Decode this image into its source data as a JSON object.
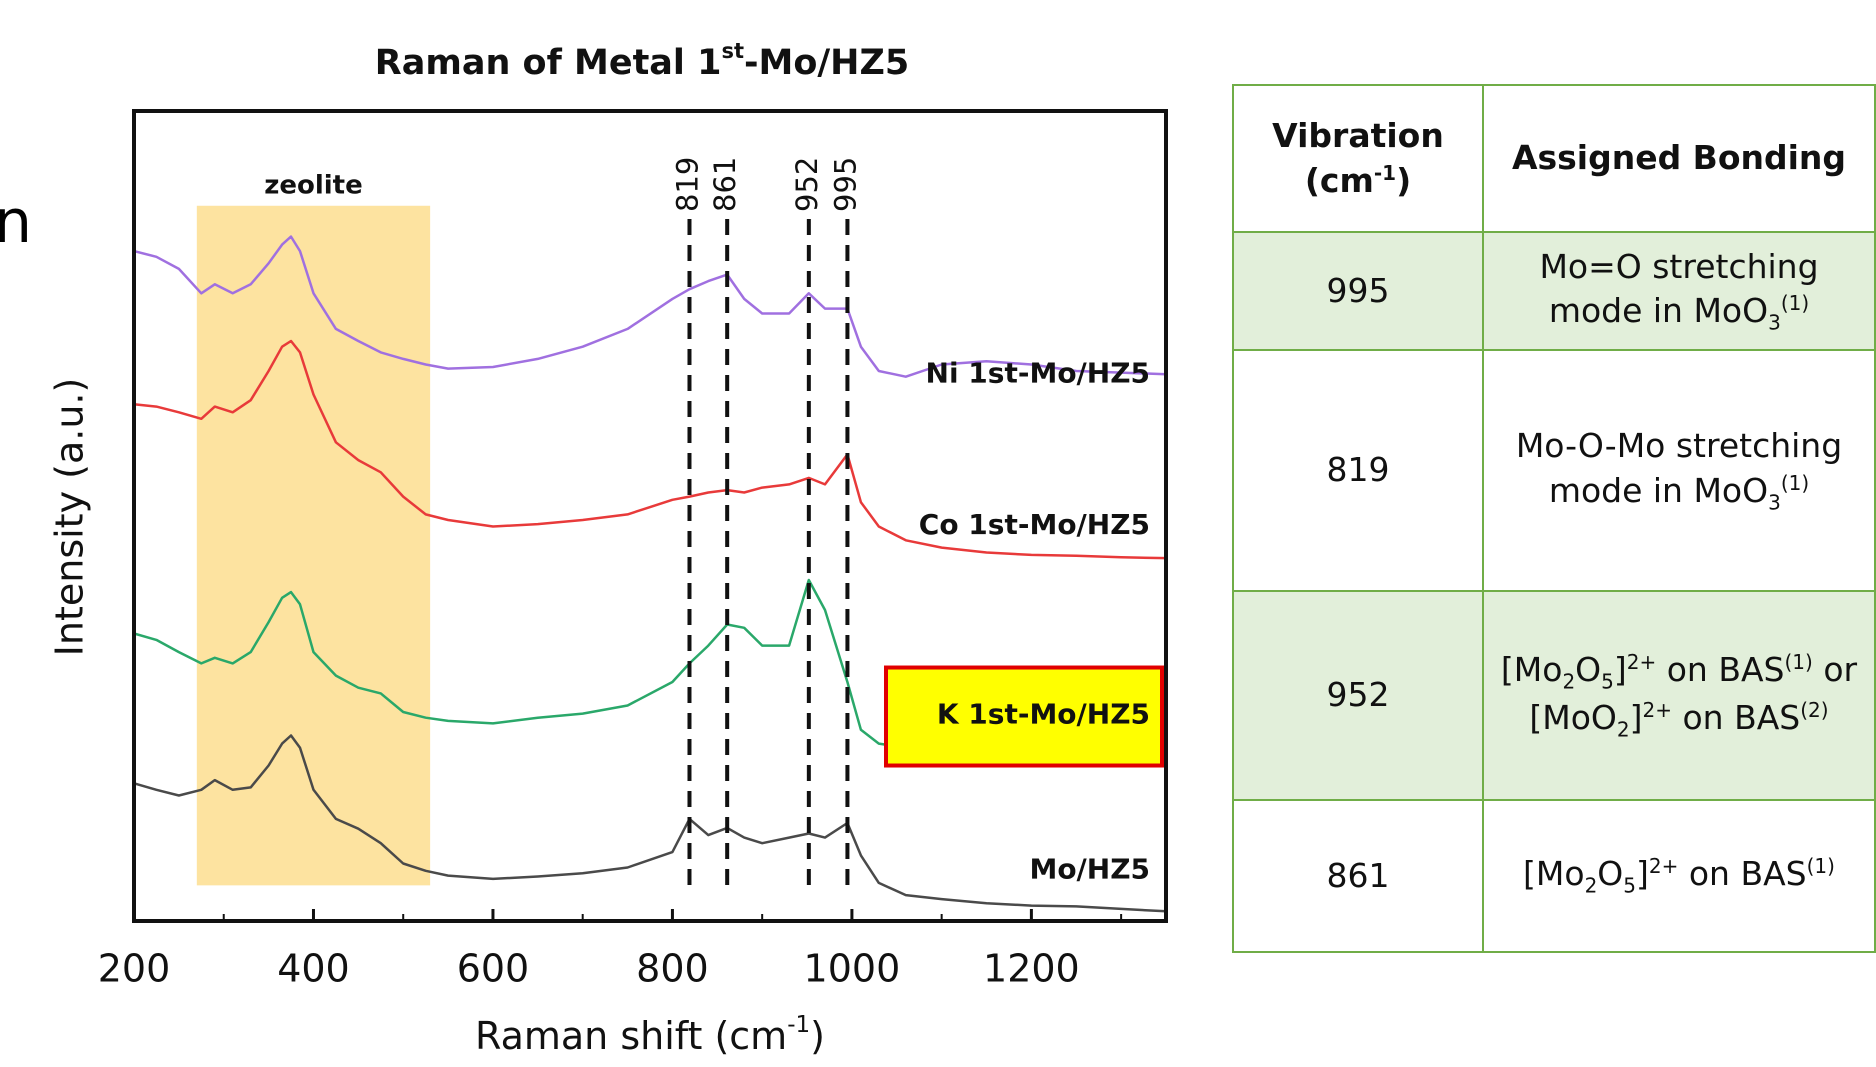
{
  "fragment": "n",
  "chart_data": {
    "type": "line",
    "title": [
      {
        "t": "Raman of Metal 1"
      },
      {
        "sup": "st"
      },
      {
        "t": "-Mo/HZ5"
      }
    ],
    "x_label": [
      {
        "t": "Raman shift (cm"
      },
      {
        "sup": "-1"
      },
      {
        "t": ")"
      }
    ],
    "y_label": "Intensity (a.u.)",
    "xlim": [
      200,
      1350
    ],
    "ylim": [
      0,
      100
    ],
    "xticks": [
      200,
      400,
      600,
      800,
      1000,
      1200
    ],
    "xminorticks": [
      300,
      500,
      700,
      900,
      1100,
      1300
    ],
    "band": {
      "label": "zeolite",
      "x": [
        270,
        530
      ],
      "y": [
        4.4,
        88.3
      ],
      "color": "#fde3a0"
    },
    "peaks": [
      819,
      861,
      952,
      995
    ],
    "x": [
      200,
      225,
      250,
      275,
      290,
      310,
      330,
      350,
      365,
      375,
      385,
      400,
      425,
      450,
      475,
      500,
      525,
      550,
      600,
      650,
      700,
      750,
      800,
      819,
      840,
      861,
      880,
      900,
      930,
      952,
      970,
      995,
      1010,
      1030,
      1060,
      1100,
      1150,
      1200,
      1250,
      1300,
      1350
    ],
    "series": [
      {
        "name": "Ni 1st-Mo/HZ5",
        "color": "#a070e0",
        "values": [
          82.7,
          82.0,
          80.5,
          77.5,
          78.6,
          77.5,
          78.6,
          81.2,
          83.5,
          84.5,
          82.7,
          77.5,
          73.1,
          71.6,
          70.2,
          69.4,
          68.7,
          68.2,
          68.4,
          69.4,
          70.9,
          73.1,
          76.8,
          78.0,
          79.0,
          79.8,
          76.8,
          75.0,
          75.0,
          77.5,
          75.6,
          75.6,
          70.9,
          67.9,
          67.2,
          68.7,
          69.1,
          68.7,
          67.9,
          67.7,
          67.5
        ]
      },
      {
        "name": "Co 1st-Mo/HZ5",
        "color": "#e83a3a",
        "values": [
          63.8,
          63.5,
          62.8,
          62.0,
          63.5,
          62.8,
          64.3,
          67.9,
          70.9,
          71.6,
          70.2,
          65.0,
          59.1,
          56.9,
          55.4,
          52.4,
          50.2,
          49.5,
          48.7,
          49.0,
          49.5,
          50.2,
          52.0,
          52.4,
          52.9,
          53.2,
          52.9,
          53.5,
          53.9,
          54.7,
          53.9,
          57.6,
          51.7,
          48.7,
          47.0,
          46.1,
          45.5,
          45.2,
          45.1,
          44.9,
          44.8
        ]
      },
      {
        "name": "K 1st-Mo/HZ5",
        "color": "#2aa86a",
        "highlight": true,
        "values": [
          35.5,
          34.7,
          33.2,
          31.8,
          32.5,
          31.8,
          33.2,
          36.9,
          39.9,
          40.6,
          39.1,
          33.2,
          30.3,
          28.8,
          28.1,
          25.8,
          25.1,
          24.7,
          24.4,
          25.1,
          25.6,
          26.6,
          29.5,
          31.8,
          34.0,
          36.6,
          36.2,
          34.0,
          34.0,
          42.1,
          38.4,
          29.5,
          23.6,
          21.9,
          21.4,
          21.3,
          21.1,
          21.1,
          21.0,
          21.0,
          20.8
        ]
      },
      {
        "name": "Mo/HZ5",
        "color": "#4a4a4a",
        "values": [
          17.0,
          16.2,
          15.5,
          16.2,
          17.4,
          16.2,
          16.5,
          19.2,
          21.9,
          22.9,
          21.4,
          16.2,
          12.6,
          11.4,
          9.6,
          7.1,
          6.2,
          5.6,
          5.2,
          5.5,
          5.9,
          6.6,
          8.5,
          12.6,
          10.6,
          11.5,
          10.3,
          9.6,
          10.3,
          10.8,
          10.3,
          12.1,
          8.1,
          4.7,
          3.2,
          2.7,
          2.2,
          1.9,
          1.8,
          1.5,
          1.2
        ]
      }
    ]
  },
  "table": {
    "header": [
      [
        {
          "t": "Vibration (cm"
        },
        {
          "sup": "-1"
        },
        {
          "t": ")"
        }
      ],
      [
        {
          "t": "Assigned Bonding"
        }
      ]
    ],
    "rows": [
      [
        995,
        [
          {
            "t": "Mo=O stretching mode in MoO"
          },
          {
            "sub": "3"
          },
          {
            "sup": "(1)"
          }
        ]
      ],
      [
        819,
        [
          {
            "t": "Mo-O-Mo stretching mode in MoO"
          },
          {
            "sub": "3"
          },
          {
            "sup": "(1)"
          }
        ]
      ],
      [
        952,
        [
          {
            "t": "[Mo"
          },
          {
            "sub": "2"
          },
          {
            "t": "O"
          },
          {
            "sub": "5"
          },
          {
            "t": "]"
          },
          {
            "sup": "2+"
          },
          {
            "t": " on BAS"
          },
          {
            "sup": "(1)"
          },
          {
            "t": " or [MoO"
          },
          {
            "sub": "2"
          },
          {
            "t": "]"
          },
          {
            "sup": "2+"
          },
          {
            "t": " on BAS"
          },
          {
            "sup": "(2)"
          }
        ]
      ],
      [
        861,
        [
          {
            "t": "[Mo"
          },
          {
            "sub": "2"
          },
          {
            "t": "O"
          },
          {
            "sub": "5"
          },
          {
            "t": "]"
          },
          {
            "sup": "2+"
          },
          {
            "t": " on BAS"
          },
          {
            "sup": "(1)"
          }
        ]
      ]
    ]
  }
}
